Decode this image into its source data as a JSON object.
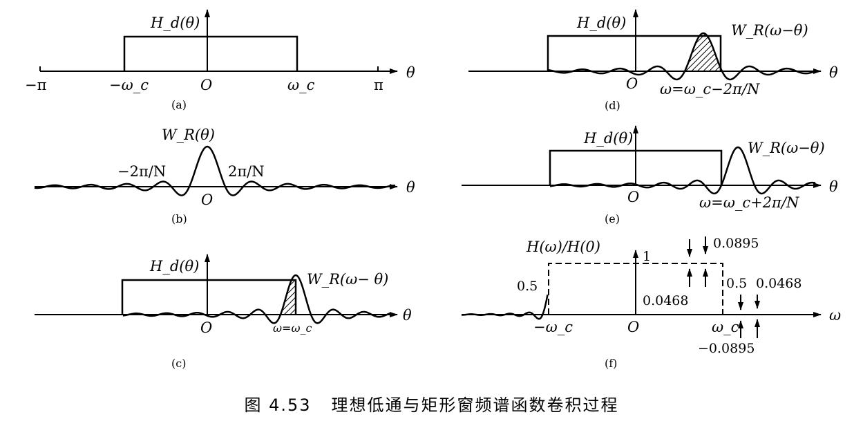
{
  "panels": {
    "a": {
      "tag": "(a)",
      "fn_label": "H_d(θ)",
      "axis_var": "θ",
      "ticks": {
        "neg_pi": "−π",
        "neg_wc": "−ω_c",
        "origin": "O",
        "wc": "ω_c",
        "pi": "π"
      }
    },
    "b": {
      "tag": "(b)",
      "fn_label": "W_R(θ)",
      "axis_var": "θ",
      "zero_left": "−2π/N",
      "zero_right": "2π/N",
      "origin": "O"
    },
    "c": {
      "tag": "(c)",
      "fn_label": "H_d(θ)",
      "window_label": "W_R(ω− θ)",
      "axis_var": "θ",
      "origin": "O",
      "position": "ω=ω_c"
    },
    "d": {
      "tag": "(d)",
      "fn_label": "H_d(θ)",
      "window_label": "W_R(ω−θ)",
      "axis_var": "θ",
      "origin": "O",
      "position": "ω=ω_c−2π/N"
    },
    "e": {
      "tag": "(e)",
      "fn_label": "H_d(θ)",
      "window_label": "W_R(ω−θ)",
      "axis_var": "θ",
      "origin": "O",
      "position": "ω=ω_c+2π/N"
    },
    "f": {
      "tag": "(f)",
      "fn_label": "H(ω)/H(0)",
      "axis_var": "ω",
      "origin": "O",
      "one": "1",
      "half_left": "0.5",
      "half_right": "0.5",
      "ripple_top": "0.0895",
      "ripple_pass": "0.0468",
      "ripple_stop": "0.0468",
      "ripple_bottom": "−0.0895",
      "neg_wc": "−ω_c",
      "wc": "ω_c"
    }
  },
  "caption": {
    "number": "图 4.53",
    "title": "理想低通与矩形窗频谱函数卷积过程"
  }
}
